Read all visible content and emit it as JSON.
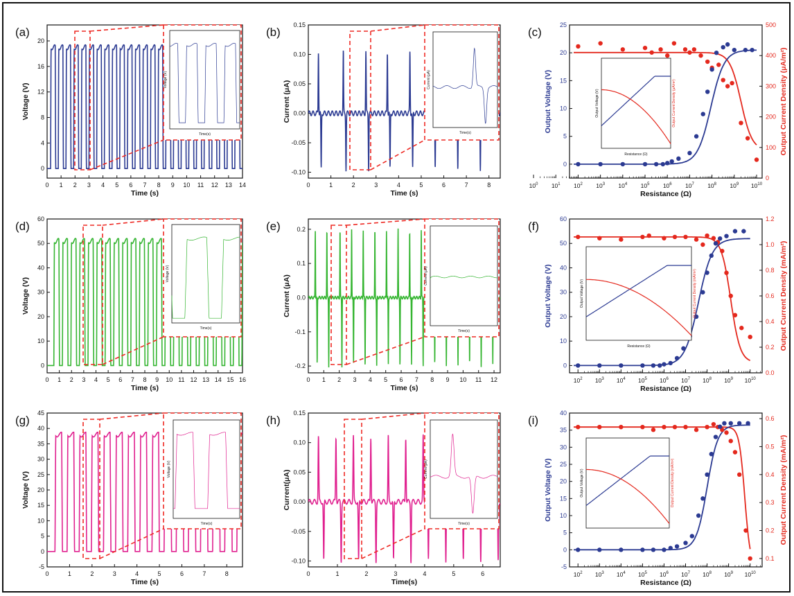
{
  "colors": {
    "blue": "#2b3a92",
    "green": "#35b531",
    "pink": "#e0208f",
    "red": "#e4281d",
    "dash": "#ee2a24",
    "axis": "#111111"
  },
  "panels": {
    "a": {
      "label": "(a)",
      "xlabel": "Time (s)",
      "ylabel": "Voltage (V)",
      "xticks": [
        "0",
        "1",
        "2",
        "3",
        "4",
        "5",
        "6",
        "7",
        "8",
        "9",
        "10",
        "11",
        "12",
        "13",
        "14"
      ],
      "yticks": [
        "0",
        "4",
        "8",
        "12",
        "16",
        "20"
      ],
      "inset_xlabel": "Time(s)",
      "inset_ylabel": "Voltage (V)"
    },
    "b": {
      "label": "(b)",
      "xlabel": "Time (s)",
      "ylabel": "Current (μA)",
      "xticks": [
        "0",
        "1",
        "2",
        "3",
        "4",
        "5",
        "6",
        "7",
        "8"
      ],
      "yticks": [
        "-0.10",
        "-0.05",
        "0.00",
        "0.05",
        "0.10",
        "0.15"
      ],
      "inset_xlabel": "Time(s)",
      "inset_ylabel": "Current (μA)"
    },
    "c": {
      "label": "(c)",
      "xlabel": "Resistance (Ω)",
      "ylabel": "Output Voltage (V)",
      "y2label": "Output Current Density (μA/m²)",
      "xticks_exp": [
        "0",
        "1",
        "2",
        "3",
        "4",
        "5",
        "6",
        "7",
        "8",
        "9",
        "10"
      ],
      "yticks": [
        "0",
        "5",
        "10",
        "15",
        "20",
        "25"
      ],
      "y2ticks": [
        "0",
        "100",
        "200",
        "300",
        "400",
        "500"
      ],
      "inset_xlabel": "Resistance (Ω)",
      "inset_ylabel": "Output Voltage (V)",
      "inset_y2label": "Output Current Density (μA/m²)"
    },
    "d": {
      "label": "(d)",
      "xlabel": "Time (s)",
      "ylabel": "Voltage (V)",
      "xticks": [
        "0",
        "1",
        "2",
        "3",
        "4",
        "5",
        "6",
        "7",
        "8",
        "9",
        "10",
        "11",
        "12",
        "13",
        "14",
        "15",
        "16"
      ],
      "yticks": [
        "0",
        "10",
        "20",
        "30",
        "40",
        "50",
        "60"
      ],
      "inset_xlabel": "Time(s)",
      "inset_ylabel": "Voltage (V)"
    },
    "e": {
      "label": "(e)",
      "xlabel": "Time (s)",
      "ylabel": "Current (μA)",
      "xticks": [
        "0",
        "1",
        "2",
        "3",
        "4",
        "5",
        "6",
        "7",
        "8",
        "9",
        "10",
        "11",
        "12"
      ],
      "yticks": [
        "-0.2",
        "-0.1",
        "0.0",
        "0.1",
        "0.2"
      ],
      "inset_xlabel": "Time(s)",
      "inset_ylabel": "Current (μA)"
    },
    "f": {
      "label": "(f)",
      "xlabel": "Resistance (Ω)",
      "ylabel": "Output Voltage (V)",
      "y2label": "Output Current Density (mA/m²)",
      "xticks_exp": [
        "2",
        "3",
        "4",
        "5",
        "6",
        "7",
        "8",
        "9",
        "10"
      ],
      "yticks": [
        "0",
        "10",
        "20",
        "30",
        "40",
        "50",
        "60"
      ],
      "y2ticks": [
        "0.0",
        "0.2",
        "0.4",
        "0.6",
        "0.8",
        "1.0",
        "1.2"
      ],
      "inset_xlabel": "Resistance (Ω)",
      "inset_ylabel": "Output Voltage (V)",
      "inset_y2label": "Output Current Density (mA/m²)"
    },
    "g": {
      "label": "(g)",
      "xlabel": "Time (s)",
      "ylabel": "Voltage (V)",
      "xticks": [
        "0",
        "1",
        "2",
        "3",
        "4",
        "5",
        "6",
        "7",
        "8"
      ],
      "yticks": [
        "-5",
        "0",
        "5",
        "10",
        "15",
        "20",
        "25",
        "30",
        "35",
        "40",
        "45"
      ],
      "inset_xlabel": "Time(s)",
      "inset_ylabel": "Voltage (V)"
    },
    "h": {
      "label": "(h)",
      "xlabel": "Time(s)",
      "ylabel": "Current(μA)",
      "xticks": [
        "0",
        "1",
        "2",
        "3",
        "4",
        "5",
        "6"
      ],
      "yticks": [
        "-0.10",
        "-0.05",
        "0.00",
        "0.05",
        "0.10",
        "0.15"
      ],
      "inset_xlabel": "Time(s)",
      "inset_ylabel": "Current (μA)"
    },
    "i": {
      "label": "(i)",
      "xlabel": "Resistance (Ω)",
      "ylabel": "Output Voltage (V)",
      "y2label": "Output Current Density (mA/m²)",
      "xticks_exp": [
        "2",
        "3",
        "4",
        "5",
        "6",
        "7",
        "8",
        "9",
        "10"
      ],
      "yticks": [
        "-5",
        "0",
        "5",
        "10",
        "15",
        "20",
        "25",
        "30",
        "35",
        "40"
      ],
      "y2ticks": [
        "0.1",
        "0.2",
        "0.3",
        "0.4",
        "0.5",
        "0.6"
      ],
      "inset_xlabel": "",
      "inset_ylabel": "Output Voltage (V)",
      "inset_y2label": "Output Current Density (mA/m²)"
    }
  },
  "chart_data": [
    {
      "panel": "a",
      "type": "line",
      "color": "blue",
      "xlim": [
        0,
        14
      ],
      "ylim": [
        -1.5,
        22.5
      ],
      "series": [
        {
          "kind": "square_wave",
          "period": 0.55,
          "start": 0.25,
          "duty": 0.6,
          "low": 0,
          "high": 19
        }
      ]
    },
    {
      "panel": "b",
      "type": "line",
      "color": "blue",
      "xlim": [
        0,
        8.5
      ],
      "ylim": [
        -0.11,
        0.15
      ],
      "series": [
        {
          "kind": "spike_pairs",
          "times": [
            0.45,
            1.55,
            2.55,
            3.5,
            4.5,
            5.5,
            6.5,
            7.5
          ],
          "pos_peak": 0.105,
          "neg_peak": -0.095,
          "gap": 0.12
        }
      ]
    },
    {
      "panel": "c",
      "type": "scatter",
      "xscale": "log",
      "xlim": [
        1.8,
        10
      ],
      "ylim": [
        -2.5,
        25
      ],
      "y2lim": [
        0,
        500
      ],
      "voltage_points": [
        [
          2,
          0
        ],
        [
          3,
          0
        ],
        [
          4,
          0
        ],
        [
          5,
          0
        ],
        [
          5.5,
          0
        ],
        [
          5.8,
          0
        ],
        [
          6,
          0.2
        ],
        [
          6.2,
          0.5
        ],
        [
          6.5,
          1
        ],
        [
          7,
          2
        ],
        [
          7.3,
          5
        ],
        [
          7.6,
          9
        ],
        [
          7.8,
          13
        ],
        [
          8,
          17
        ],
        [
          8.2,
          20
        ],
        [
          8.5,
          21
        ],
        [
          8.7,
          21.5
        ],
        [
          9,
          20.5
        ],
        [
          9.5,
          20.5
        ],
        [
          9.8,
          20.5
        ]
      ],
      "current_points": [
        [
          2,
          430
        ],
        [
          3,
          440
        ],
        [
          4,
          420
        ],
        [
          5,
          425
        ],
        [
          5.3,
          410
        ],
        [
          5.7,
          420
        ],
        [
          6,
          400
        ],
        [
          6.3,
          440
        ],
        [
          6.8,
          420
        ],
        [
          7,
          410
        ],
        [
          7.2,
          420
        ],
        [
          7.5,
          400
        ],
        [
          7.8,
          380
        ],
        [
          8,
          360
        ],
        [
          8.3,
          370
        ],
        [
          8.5,
          320
        ],
        [
          8.7,
          300
        ],
        [
          8.9,
          310
        ],
        [
          9.3,
          180
        ],
        [
          9.6,
          130
        ],
        [
          10,
          60
        ]
      ],
      "voltage_fit": {
        "low": 0,
        "high": 20.5,
        "mid": 7.95,
        "width": 0.3
      },
      "current_fit": {
        "low": 90,
        "high": 410,
        "mid": 9.3,
        "width": 0.25
      }
    },
    {
      "panel": "d",
      "type": "line",
      "color": "green",
      "xlim": [
        0,
        16
      ],
      "ylim": [
        -3,
        60
      ],
      "series": [
        {
          "kind": "square_wave",
          "period": 0.7,
          "start": 0.55,
          "duty": 0.6,
          "low": 0,
          "high": 51
        }
      ]
    },
    {
      "panel": "e",
      "type": "line",
      "color": "green",
      "xlim": [
        0,
        12.4
      ],
      "ylim": [
        -0.22,
        0.23
      ],
      "series": [
        {
          "kind": "spike_pairs",
          "times": [
            0.45,
            1.2,
            2.05,
            2.8,
            3.55,
            4.3,
            5.05,
            5.8,
            6.55,
            7.3,
            8.05,
            8.8,
            9.55,
            10.3,
            11.05,
            11.8
          ],
          "pos_peak": 0.2,
          "neg_peak": -0.2,
          "gap": 0.12
        }
      ]
    },
    {
      "panel": "f",
      "type": "scatter",
      "xscale": "log",
      "xlim": [
        1.8,
        10.3
      ],
      "ylim": [
        -3,
        60
      ],
      "y2lim": [
        0,
        1.2
      ],
      "voltage_points": [
        [
          2,
          0
        ],
        [
          3,
          0
        ],
        [
          4,
          0
        ],
        [
          5,
          0
        ],
        [
          5.5,
          0
        ],
        [
          5.8,
          0
        ],
        [
          6,
          0.5
        ],
        [
          6.3,
          1
        ],
        [
          6.6,
          3
        ],
        [
          6.9,
          7
        ],
        [
          7.2,
          12
        ],
        [
          7.5,
          20
        ],
        [
          7.8,
          30
        ],
        [
          8,
          38
        ],
        [
          8.2,
          45
        ],
        [
          8.4,
          50
        ],
        [
          8.6,
          52
        ],
        [
          8.9,
          53
        ],
        [
          9.3,
          55
        ],
        [
          9.7,
          55
        ]
      ],
      "current_points": [
        [
          2,
          1.06
        ],
        [
          3,
          1.05
        ],
        [
          4,
          1.04
        ],
        [
          5,
          1.06
        ],
        [
          5.3,
          1.07
        ],
        [
          6,
          1.05
        ],
        [
          6.5,
          1.06
        ],
        [
          7,
          1.06
        ],
        [
          7.5,
          1.04
        ],
        [
          7.8,
          1.0
        ],
        [
          8,
          1.07
        ],
        [
          8.3,
          1.05
        ],
        [
          8.5,
          1.02
        ],
        [
          8.7,
          0.95
        ],
        [
          8.9,
          0.78
        ],
        [
          9.1,
          0.6
        ],
        [
          9.3,
          0.45
        ],
        [
          9.6,
          0.35
        ],
        [
          10,
          0.28
        ]
      ],
      "voltage_fit": {
        "low": 0,
        "high": 52,
        "mid": 7.6,
        "width": 0.32
      },
      "current_fit": {
        "low": 0.08,
        "high": 1.06,
        "mid": 9.1,
        "width": 0.22
      }
    },
    {
      "panel": "g",
      "type": "line",
      "color": "pink",
      "xlim": [
        0,
        8.7
      ],
      "ylim": [
        -5,
        45
      ],
      "series": [
        {
          "kind": "square_wave",
          "period": 0.54,
          "start": 0.35,
          "duty": 0.55,
          "low": 0,
          "high": 38
        }
      ]
    },
    {
      "panel": "h",
      "type": "line",
      "color": "pink",
      "xlim": [
        0,
        6.6
      ],
      "ylim": [
        -0.11,
        0.15
      ],
      "series": [
        {
          "kind": "spike_pairs",
          "times": [
            0.35,
            0.95,
            1.55,
            2.15,
            2.75,
            3.35,
            3.95,
            4.55,
            5.15,
            5.75,
            6.35
          ],
          "pos_peak": 0.11,
          "neg_peak": -0.1,
          "gap": 0.18
        }
      ]
    },
    {
      "panel": "i",
      "type": "scatter",
      "xscale": "log",
      "xlim": [
        1.8,
        10.3
      ],
      "ylim": [
        -5,
        40
      ],
      "y2lim": [
        0.07,
        0.62
      ],
      "voltage_points": [
        [
          2,
          0
        ],
        [
          3,
          0
        ],
        [
          4,
          0
        ],
        [
          5,
          0
        ],
        [
          5.5,
          0
        ],
        [
          6,
          0
        ],
        [
          6.3,
          0.5
        ],
        [
          6.6,
          1
        ],
        [
          7,
          2
        ],
        [
          7.3,
          4
        ],
        [
          7.6,
          10
        ],
        [
          7.8,
          15
        ],
        [
          8,
          22
        ],
        [
          8.2,
          28
        ],
        [
          8.4,
          33
        ],
        [
          8.6,
          36
        ],
        [
          8.8,
          37
        ],
        [
          9.1,
          37
        ],
        [
          9.5,
          37
        ],
        [
          9.9,
          37
        ]
      ],
      "current_points": [
        [
          2,
          0.57
        ],
        [
          3,
          0.57
        ],
        [
          4,
          0.57
        ],
        [
          5,
          0.57
        ],
        [
          5.5,
          0.56
        ],
        [
          6,
          0.57
        ],
        [
          6.5,
          0.57
        ],
        [
          7,
          0.57
        ],
        [
          7.5,
          0.56
        ],
        [
          8,
          0.57
        ],
        [
          8.3,
          0.58
        ],
        [
          8.5,
          0.57
        ],
        [
          8.7,
          0.56
        ],
        [
          8.9,
          0.55
        ],
        [
          9.1,
          0.52
        ],
        [
          9.3,
          0.48
        ],
        [
          9.5,
          0.4
        ],
        [
          9.8,
          0.2
        ],
        [
          10,
          0.1
        ]
      ],
      "voltage_fit": {
        "low": 0,
        "high": 36.5,
        "mid": 8.0,
        "width": 0.25
      },
      "current_fit": {
        "low": 0.07,
        "high": 0.57,
        "mid": 9.75,
        "width": 0.13
      }
    }
  ]
}
